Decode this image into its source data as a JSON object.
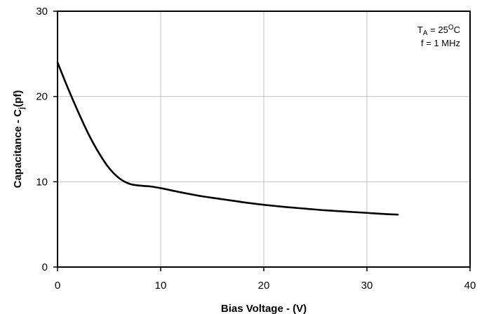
{
  "chart_data": {
    "type": "line",
    "title": "",
    "xlabel": "Bias Voltage - (V)",
    "ylabel": {
      "main": "Capacitance - C",
      "subscript": "j",
      "suffix": "(pf)"
    },
    "xlim": [
      0,
      40
    ],
    "ylim": [
      0,
      30
    ],
    "xticks": [
      0,
      10,
      20,
      30,
      40
    ],
    "yticks": [
      0,
      10,
      20,
      30
    ],
    "grid": true,
    "legend": "none",
    "annotations": [
      {
        "parts": [
          {
            "text": "T",
            "style": "normal"
          },
          {
            "text": "A",
            "style": "sub"
          },
          {
            "text": " = 25",
            "style": "normal"
          },
          {
            "text": "O",
            "style": "sup"
          },
          {
            "text": "C",
            "style": "normal"
          }
        ]
      },
      {
        "parts": [
          {
            "text": "f = 1 MHz",
            "style": "normal"
          }
        ]
      }
    ],
    "series": [
      {
        "color": "#000000",
        "x": [
          0,
          1,
          2,
          3,
          4,
          5,
          6,
          7,
          8,
          9,
          10,
          12,
          14,
          16,
          18,
          20,
          22,
          24,
          26,
          28,
          30,
          32,
          33
        ],
        "y": [
          24.0,
          21.0,
          18.2,
          15.6,
          13.4,
          11.6,
          10.4,
          9.75,
          9.55,
          9.45,
          9.25,
          8.75,
          8.3,
          7.95,
          7.6,
          7.3,
          7.05,
          6.85,
          6.65,
          6.5,
          6.35,
          6.2,
          6.15
        ]
      }
    ],
    "colors": {
      "grid": "#c0c0c0",
      "axis": "#000000",
      "line": "#000000",
      "background": "#ffffff"
    }
  }
}
